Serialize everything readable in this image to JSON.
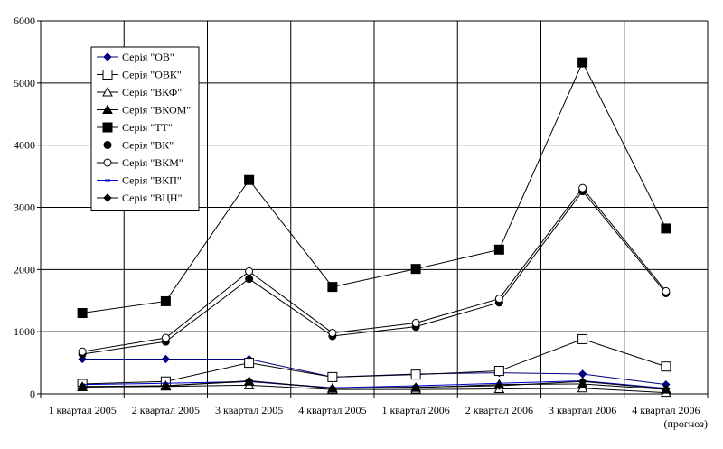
{
  "chart_data": {
    "type": "line",
    "categories": [
      [
        "1 квартал 2005"
      ],
      [
        "2 квартал 2005"
      ],
      [
        "3 квартал 2005"
      ],
      [
        "4 квартал 2005"
      ],
      [
        "1 квартал 2006"
      ],
      [
        "2 квартал 2006"
      ],
      [
        "3 квартал 2006"
      ],
      [
        "4 квартал 2006",
        "(прогноз)"
      ]
    ],
    "ylim": [
      0,
      6000
    ],
    "yticks": [
      0,
      1000,
      2000,
      3000,
      4000,
      5000,
      6000
    ],
    "grid": true,
    "legend_position": "top-left",
    "series": [
      {
        "name": "Серія \"ОВ\"",
        "marker": "diamond-filled",
        "color": "#000080",
        "values": [
          560,
          560,
          560,
          270,
          320,
          340,
          320,
          150
        ]
      },
      {
        "name": "Серія \"ОВК\"",
        "marker": "square-open",
        "color": "#000000",
        "values": [
          160,
          200,
          500,
          270,
          310,
          370,
          880,
          440
        ]
      },
      {
        "name": "Серія \"ВКФ\"",
        "marker": "triangle-open",
        "color": "#000000",
        "values": [
          110,
          120,
          140,
          70,
          70,
          80,
          90,
          20
        ]
      },
      {
        "name": "Серія \"ВКОМ\"",
        "marker": "triangle-filled",
        "color": "#000000",
        "values": [
          110,
          130,
          200,
          90,
          100,
          150,
          160,
          70
        ]
      },
      {
        "name": "Серія \"ТТ\"",
        "marker": "square-filled",
        "color": "#000000",
        "values": [
          1300,
          1490,
          3440,
          1720,
          2010,
          2320,
          5330,
          2660
        ]
      },
      {
        "name": "Серія \"ВК\"",
        "marker": "circle-filled",
        "color": "#000000",
        "values": [
          640,
          840,
          1850,
          930,
          1080,
          1470,
          3260,
          1620
        ]
      },
      {
        "name": "Серія \"ВКМ\"",
        "marker": "circle-open",
        "color": "#000000",
        "values": [
          680,
          900,
          1970,
          980,
          1140,
          1530,
          3310,
          1650
        ]
      },
      {
        "name": "Серія \"ВКП\"",
        "marker": "dash",
        "color": "#0000cc",
        "values": [
          150,
          170,
          200,
          100,
          130,
          170,
          210,
          90
        ]
      },
      {
        "name": "Серія \"ВЦН\"",
        "marker": "diamond-filled",
        "color": "#000000",
        "values": [
          120,
          130,
          210,
          90,
          110,
          130,
          200,
          80
        ]
      }
    ]
  }
}
